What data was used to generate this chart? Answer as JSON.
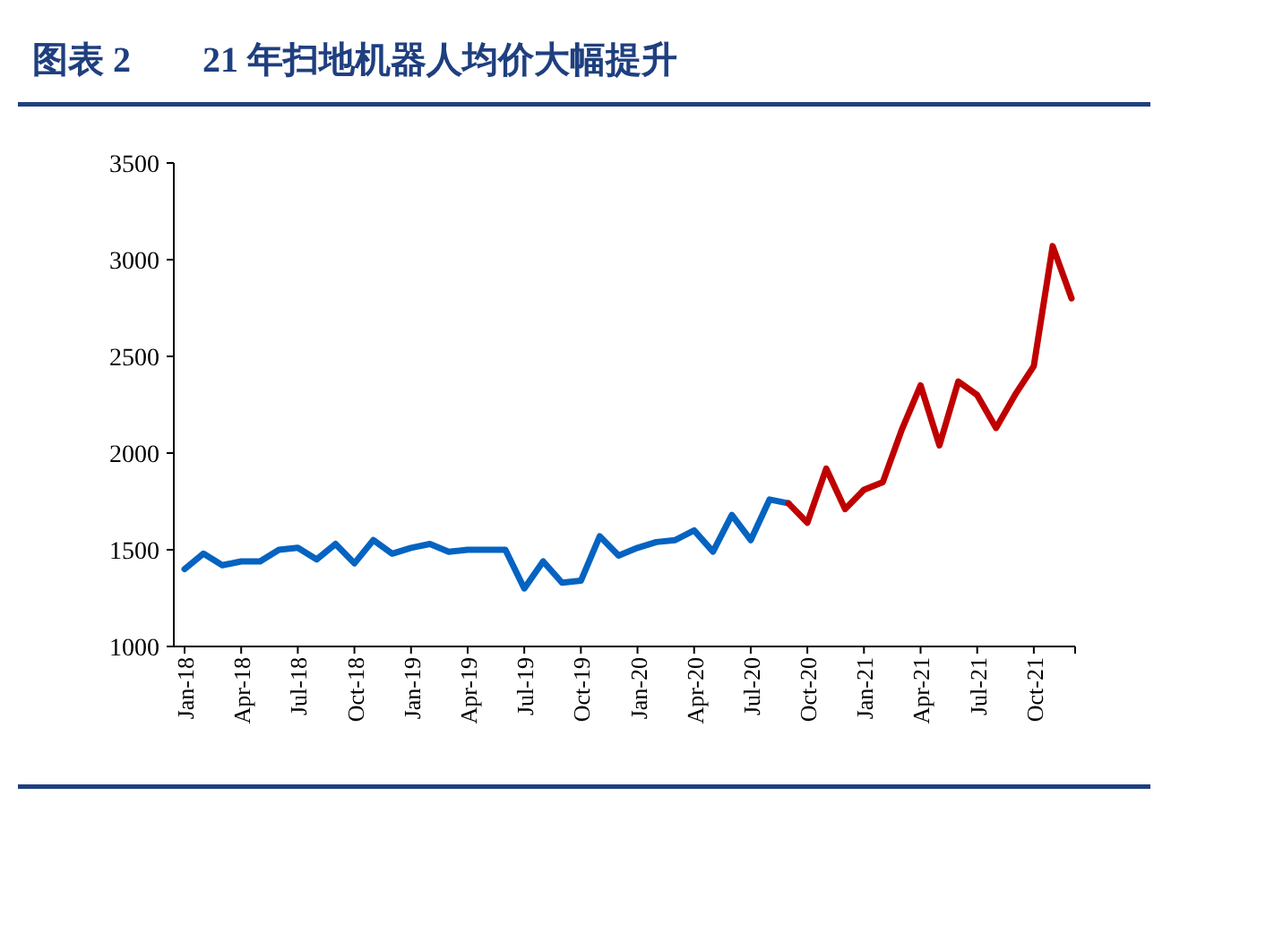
{
  "chart_data": {
    "type": "line",
    "title": "图表 2　　21 年扫地机器人均价大幅提升",
    "categories": [
      "Jan-18",
      null,
      null,
      "Apr-18",
      null,
      null,
      "Jul-18",
      null,
      null,
      "Oct-18",
      null,
      null,
      "Jan-19",
      null,
      null,
      "Apr-19",
      null,
      null,
      "Jul-19",
      null,
      null,
      "Oct-19",
      null,
      null,
      "Jan-20",
      null,
      null,
      "Apr-20",
      null,
      null,
      "Jul-20",
      null,
      null,
      "Oct-20",
      null,
      null,
      "Jan-21",
      null,
      null,
      "Apr-21",
      null,
      null,
      "Jul-21",
      null,
      null,
      "Oct-21",
      null,
      null
    ],
    "series": [
      {
        "color": "#0563c1",
        "values": [
          1400,
          1480,
          1420,
          1440,
          1440,
          1500,
          1510,
          1450,
          1530,
          1430,
          1550,
          1480,
          1510,
          1530,
          1490,
          1500,
          1500,
          1500,
          1300,
          1440,
          1330,
          1340,
          1570,
          1470,
          1510,
          1540,
          1550,
          1600,
          1490,
          1680,
          1550,
          1760,
          1740,
          null,
          null,
          null,
          null,
          null,
          null,
          null,
          null,
          null,
          null,
          null,
          null,
          null,
          null,
          null
        ]
      },
      {
        "color": "#c00000",
        "values": [
          null,
          null,
          null,
          null,
          null,
          null,
          null,
          null,
          null,
          null,
          null,
          null,
          null,
          null,
          null,
          null,
          null,
          null,
          null,
          null,
          null,
          null,
          null,
          null,
          null,
          null,
          null,
          null,
          null,
          null,
          null,
          null,
          1740,
          1640,
          1920,
          1710,
          1810,
          1850,
          2120,
          2350,
          2040,
          2370,
          2300,
          2130,
          2300,
          2450,
          3070,
          2800
        ]
      }
    ],
    "ylim": [
      1000,
      3500
    ],
    "yticks": [
      1000,
      1500,
      2000,
      2500,
      3000,
      3500
    ],
    "grid": false,
    "marker": "none",
    "line_style": "solid"
  }
}
